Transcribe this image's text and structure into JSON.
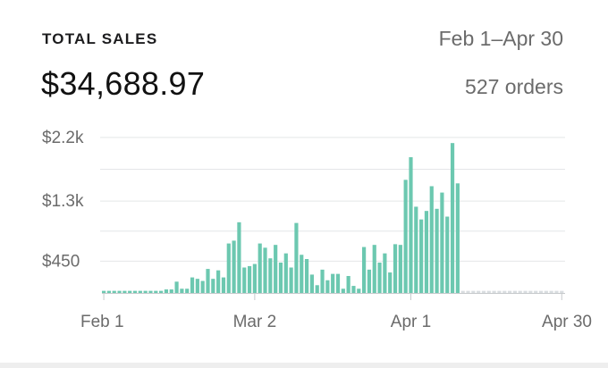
{
  "header": {
    "title": "TOTAL SALES",
    "date_range": "Feb 1–Apr 30",
    "total": "$34,688.97",
    "orders": "527 orders"
  },
  "colors": {
    "bar": "#6cc8b0",
    "future_bar": "#d9dde0",
    "grid": "#e4e6e8",
    "axis": "#c7cacc"
  },
  "chart_data": {
    "type": "bar",
    "title": "",
    "xlabel": "",
    "ylabel": "",
    "ylim": [
      0,
      2400
    ],
    "y_ticks": [
      {
        "value": 450,
        "label": "$450"
      },
      {
        "value": 1300,
        "label": "$1.3k"
      },
      {
        "value": 2200,
        "label": "$2.2k"
      }
    ],
    "x_ticks": [
      {
        "day": 0,
        "label": "Feb 1"
      },
      {
        "day": 29,
        "label": "Mar 2"
      },
      {
        "day": 59,
        "label": "Apr 1"
      },
      {
        "day": 88,
        "label": "Apr 30"
      }
    ],
    "grid": true,
    "legend": "none",
    "days": 89,
    "values": [
      30,
      30,
      30,
      30,
      30,
      30,
      30,
      30,
      30,
      30,
      30,
      30,
      50,
      50,
      160,
      60,
      60,
      220,
      200,
      170,
      340,
      200,
      320,
      220,
      700,
      740,
      1000,
      360,
      380,
      410,
      700,
      640,
      490,
      680,
      430,
      560,
      360,
      990,
      540,
      480,
      260,
      110,
      330,
      180,
      270,
      270,
      60,
      240,
      100,
      60,
      650,
      330,
      680,
      430,
      560,
      290,
      690,
      680,
      1600,
      1920,
      1220,
      1040,
      1160,
      1510,
      1190,
      1420,
      1080,
      2120,
      1550,
      0,
      0,
      0,
      0,
      0,
      0,
      0,
      0,
      0,
      0,
      0,
      0,
      0,
      0,
      0,
      0,
      0,
      0,
      0,
      0
    ],
    "future_start_day": 69
  }
}
